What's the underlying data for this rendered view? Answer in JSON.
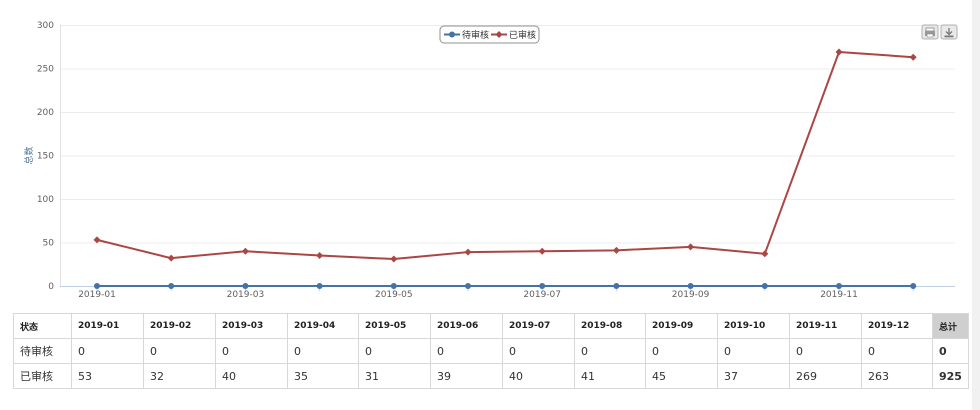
{
  "chart_data": {
    "type": "line",
    "categories": [
      "2019-01",
      "2019-02",
      "2019-03",
      "2019-04",
      "2019-05",
      "2019-06",
      "2019-07",
      "2019-08",
      "2019-09",
      "2019-10",
      "2019-11",
      "2019-12"
    ],
    "x_tick_labels": [
      "2019-01",
      "2019-03",
      "2019-05",
      "2019-07",
      "2019-09",
      "2019-11"
    ],
    "y_ticks": [
      0,
      50,
      100,
      150,
      200,
      250,
      300
    ],
    "ylim": [
      0,
      300
    ],
    "ylabel": "总数",
    "xlabel": "",
    "title": "",
    "legend_position": "top-center",
    "series": [
      {
        "name": "待审核",
        "color": "#4572a7",
        "marker": "circle",
        "values": [
          0,
          0,
          0,
          0,
          0,
          0,
          0,
          0,
          0,
          0,
          0,
          0
        ]
      },
      {
        "name": "已审核",
        "color": "#aa4643",
        "marker": "diamond",
        "values": [
          53,
          32,
          40,
          35,
          31,
          39,
          40,
          41,
          45,
          37,
          269,
          263
        ]
      }
    ]
  },
  "toolbar": {
    "print_icon": "print-icon",
    "export_icon": "download-icon"
  },
  "table": {
    "status_header": "状态",
    "total_header": "总计",
    "months": [
      "2019-01",
      "2019-02",
      "2019-03",
      "2019-04",
      "2019-05",
      "2019-06",
      "2019-07",
      "2019-08",
      "2019-09",
      "2019-10",
      "2019-11",
      "2019-12"
    ],
    "rows": [
      {
        "label": "待审核",
        "values": [
          "0",
          "0",
          "0",
          "0",
          "0",
          "0",
          "0",
          "0",
          "0",
          "0",
          "0",
          "0"
        ],
        "total": "0"
      },
      {
        "label": "已审核",
        "values": [
          "53",
          "32",
          "40",
          "35",
          "31",
          "39",
          "40",
          "41",
          "45",
          "37",
          "269",
          "263"
        ],
        "total": "925"
      }
    ]
  }
}
